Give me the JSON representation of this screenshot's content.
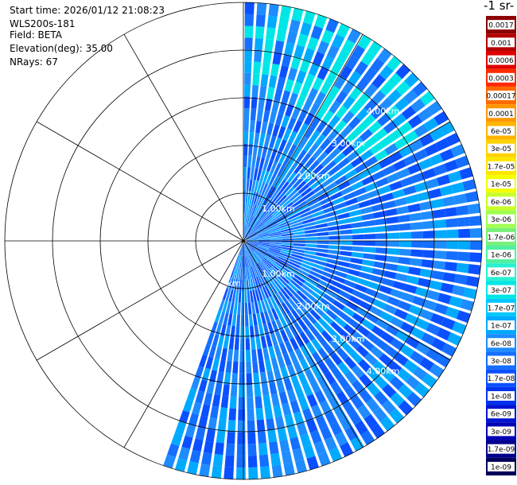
{
  "header": {
    "start_time": "Start time: 2026/01/12 21:08:23",
    "instrument": "WLS200s-181",
    "field": "Field: BETA",
    "elevation": "Elevation(deg): 35.00",
    "nrays": "NRays: 67"
  },
  "colorbar": {
    "title": "-1 sr-",
    "labels": [
      "0.0017",
      "0.001",
      "0.0006",
      "0.0003",
      "0.00017",
      "0.0001",
      "6e-05",
      "3e-05",
      "1.7e-05",
      "1e-05",
      "6e-06",
      "3e-06",
      "1.7e-06",
      "1e-06",
      "6e-07",
      "3e-07",
      "1.7e-07",
      "1e-07",
      "6e-08",
      "3e-08",
      "1.7e-08",
      "1e-08",
      "6e-09",
      "3e-09",
      "1.7e-09",
      "1e-09"
    ],
    "colors": [
      "#8b0000",
      "#b40000",
      "#e00000",
      "#ff2a00",
      "#ff6a00",
      "#ff9600",
      "#ffb400",
      "#ffd200",
      "#ffe600",
      "#f4ff00",
      "#c8ff28",
      "#a0ff50",
      "#78f07a",
      "#50f0a0",
      "#28f0d2",
      "#00e6e6",
      "#00c8ff",
      "#00aaff",
      "#1e8cff",
      "#146eff",
      "#0a50ff",
      "#0032f0",
      "#0014d2",
      "#0000b4",
      "#00008c",
      "#00005a"
    ]
  },
  "chart_data": {
    "type": "polar-ppi",
    "field": "BETA",
    "elevation_deg": 35.0,
    "n_rays": 67,
    "azimuth_range_deg": [
      0,
      200
    ],
    "range_rings_km": [
      1.0,
      2.0,
      3.0,
      4.0
    ],
    "ring_labels_upper": [
      "1.00km",
      "2.00km",
      "3.00km",
      "4.00km"
    ],
    "ring_labels_lower": [
      "km",
      "1.00km",
      "2.00km",
      "3.00km",
      "4.00km"
    ],
    "max_range_km": 5.0,
    "typical_value": "3e-08",
    "dominant_colors": [
      "#146eff",
      "#1e8cff",
      "#00aaff",
      "#0a50ff",
      "#00e6e6"
    ]
  }
}
